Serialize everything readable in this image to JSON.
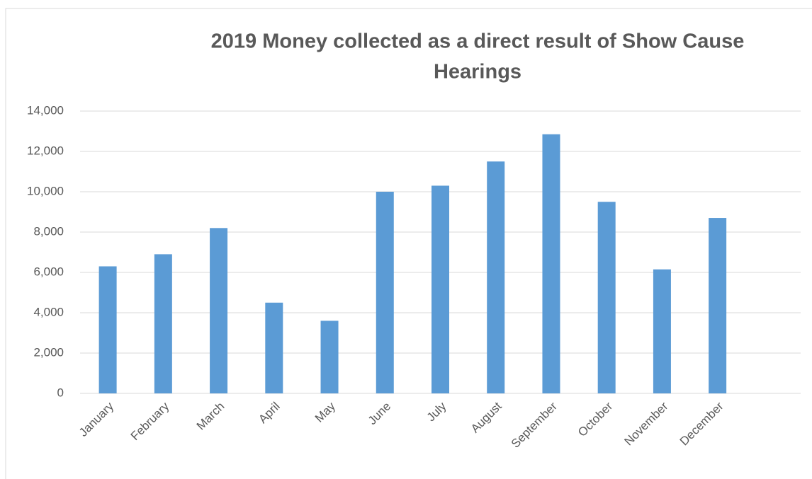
{
  "chart_data": {
    "type": "bar",
    "title": "2019 Money collected as a direct result of Show Cause Hearings",
    "categories": [
      "January",
      "February",
      "March",
      "April",
      "May",
      "June",
      "July",
      "August",
      "September",
      "October",
      "November",
      "December"
    ],
    "values": [
      6300,
      6900,
      8200,
      4500,
      3600,
      10000,
      10300,
      11500,
      12850,
      9500,
      6150,
      8700
    ],
    "color": "#5b9bd5",
    "ylim": [
      0,
      14000
    ],
    "yticks": [
      0,
      {
        "value": 2000,
        "label": "2,000"
      },
      {
        "value": 4000,
        "label": "4,000"
      },
      {
        "value": 6000,
        "label": "6,000"
      },
      {
        "value": 8000,
        "label": "8,000"
      },
      {
        "value": 10000,
        "label": "10,000"
      },
      {
        "value": 12000,
        "label": "12,000"
      },
      {
        "value": 14000,
        "label": "14,000"
      }
    ],
    "grid": true
  }
}
